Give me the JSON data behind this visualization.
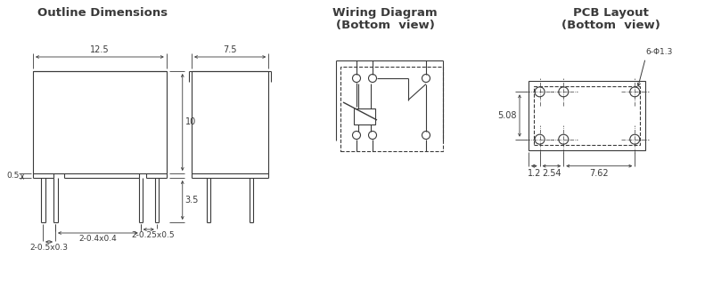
{
  "title_outline": "Outline Dimensions",
  "title_wiring": "Wiring Diagram\n(Bottom  view)",
  "title_pcb": "PCB Layout\n(Bottom  view)",
  "line_color": "#3a3a3a",
  "dim_color": "#3a3a3a",
  "bg_color": "#ffffff",
  "title_fontsize": 9.5,
  "dim_fontsize": 7,
  "annotation_fontsize": 6.5
}
